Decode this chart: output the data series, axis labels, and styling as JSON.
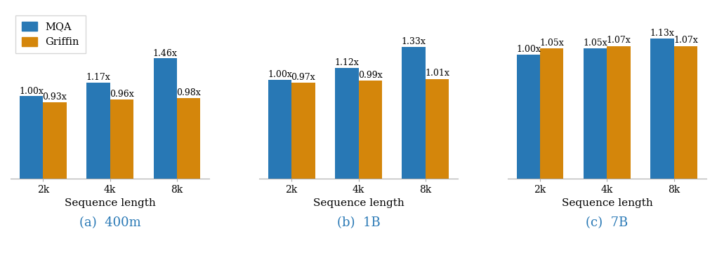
{
  "subplots": [
    {
      "title": "(a)  400m",
      "xlabel": "Sequence length",
      "categories": [
        "2k",
        "4k",
        "8k"
      ],
      "mqa_values": [
        1.0,
        1.17,
        1.46
      ],
      "griffin_values": [
        0.93,
        0.96,
        0.98
      ],
      "mqa_labels": [
        "1.00x",
        "1.17x",
        "1.46x"
      ],
      "griffin_labels": [
        "0.93x",
        "0.96x",
        "0.98x"
      ]
    },
    {
      "title": "(b)  1B",
      "xlabel": "Sequence length",
      "categories": [
        "2k",
        "4k",
        "8k"
      ],
      "mqa_values": [
        1.0,
        1.12,
        1.33
      ],
      "griffin_values": [
        0.97,
        0.99,
        1.01
      ],
      "mqa_labels": [
        "1.00x",
        "1.12x",
        "1.33x"
      ],
      "griffin_labels": [
        "0.97x",
        "0.99x",
        "1.01x"
      ]
    },
    {
      "title": "(c)  7B",
      "xlabel": "Sequence length",
      "categories": [
        "2k",
        "4k",
        "8k"
      ],
      "mqa_values": [
        1.0,
        1.05,
        1.13
      ],
      "griffin_values": [
        1.05,
        1.07,
        1.07
      ],
      "mqa_labels": [
        "1.00x",
        "1.05x",
        "1.13x"
      ],
      "griffin_labels": [
        "1.05x",
        "1.07x",
        "1.07x"
      ]
    }
  ],
  "mqa_color": "#2878b5",
  "griffin_color": "#d4860b",
  "title_color": "#2878b5",
  "bar_width": 0.35,
  "label_fontsize": 9,
  "tick_fontsize": 10,
  "xlabel_fontsize": 11,
  "title_fontsize": 13,
  "legend_labels": [
    "MQA",
    "Griffin"
  ],
  "figsize": [
    10.21,
    3.94
  ],
  "dpi": 100,
  "ylim_multiplier": [
    1.4,
    1.28,
    1.2
  ]
}
